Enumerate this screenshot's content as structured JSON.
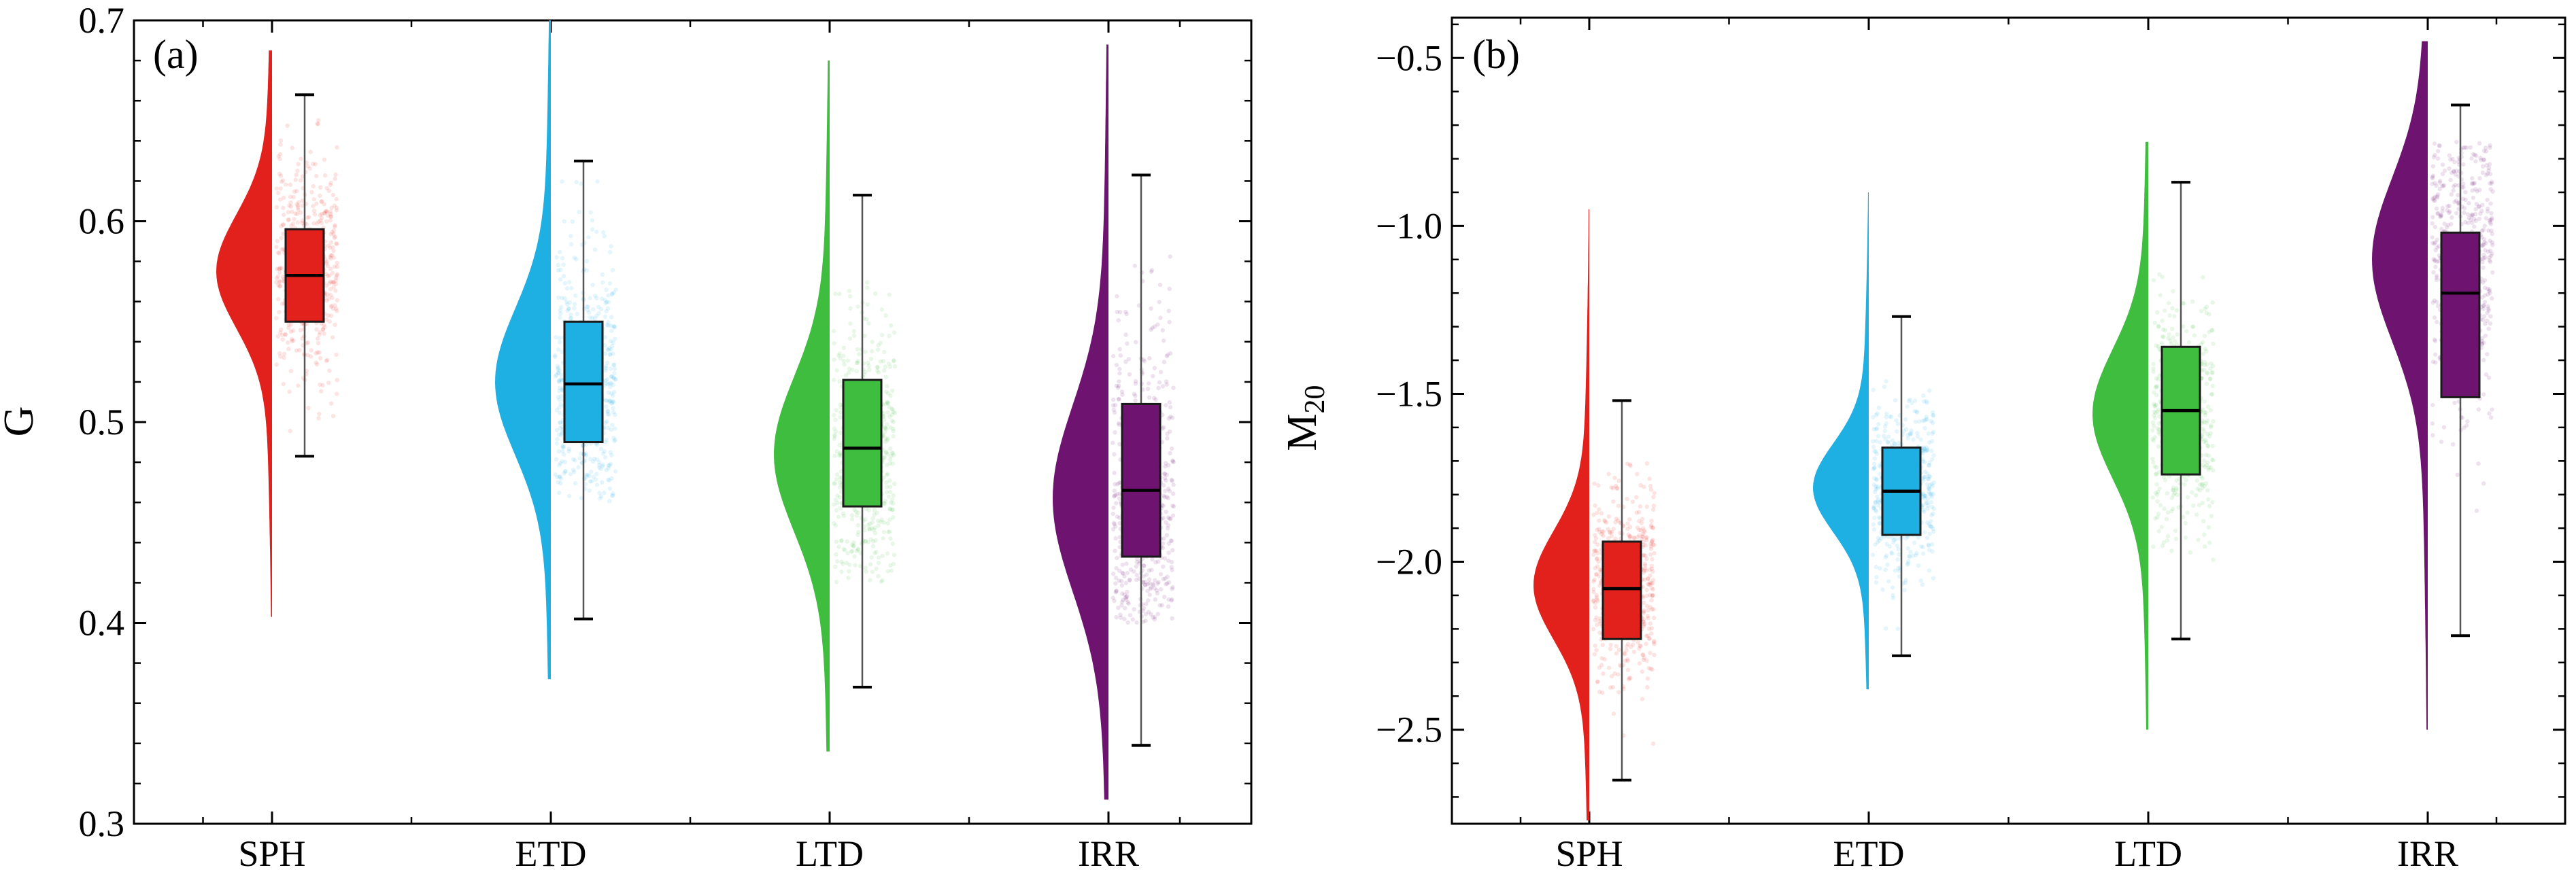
{
  "chart_data": [
    {
      "type": "raincloud",
      "panel_label": "(a)",
      "ylabel": "G",
      "ylabel_sub": "",
      "ylim": [
        0.3,
        0.7
      ],
      "yticks": [
        0.3,
        0.4,
        0.5,
        0.6,
        0.7
      ],
      "ytick_labels": [
        "0.3",
        "0.4",
        "0.5",
        "0.6",
        "0.7"
      ],
      "categories": [
        "SPH",
        "ETD",
        "LTD",
        "IRR"
      ],
      "colors": [
        "#e3211c",
        "#1fb0e3",
        "#3ebd3e",
        "#6e1470"
      ],
      "groups": [
        {
          "name": "SPH",
          "whisker_low": 0.483,
          "q1": 0.55,
          "median": 0.573,
          "q3": 0.596,
          "whisker_high": 0.663,
          "kde_min": 0.403,
          "kde_max": 0.685,
          "peak": 0.575,
          "spread": 0.028,
          "strip_low": 0.46,
          "strip_high": 0.665
        },
        {
          "name": "ETD",
          "whisker_low": 0.402,
          "q1": 0.49,
          "median": 0.519,
          "q3": 0.55,
          "whisker_high": 0.63,
          "kde_min": 0.372,
          "kde_max": 0.7,
          "peak": 0.52,
          "spread": 0.036,
          "strip_low": 0.46,
          "strip_high": 0.62
        },
        {
          "name": "LTD",
          "whisker_low": 0.368,
          "q1": 0.458,
          "median": 0.487,
          "q3": 0.521,
          "whisker_high": 0.613,
          "kde_min": 0.336,
          "kde_max": 0.68,
          "peak": 0.484,
          "spread": 0.038,
          "strip_low": 0.42,
          "strip_high": 0.6
        },
        {
          "name": "IRR",
          "whisker_low": 0.339,
          "q1": 0.433,
          "median": 0.466,
          "q3": 0.509,
          "whisker_high": 0.623,
          "kde_min": 0.312,
          "kde_max": 0.688,
          "peak": 0.462,
          "spread": 0.046,
          "strip_low": 0.4,
          "strip_high": 0.6
        }
      ]
    },
    {
      "type": "raincloud",
      "panel_label": "(b)",
      "ylabel": "M",
      "ylabel_sub": "20",
      "ylim": [
        -2.78,
        -0.38
      ],
      "yticks": [
        -2.5,
        -2.0,
        -1.5,
        -1.0,
        -0.5
      ],
      "ytick_labels": [
        "−2.5",
        "−2.0",
        "−1.5",
        "−1.0",
        "−0.5"
      ],
      "categories": [
        "SPH",
        "ETD",
        "LTD",
        "IRR"
      ],
      "colors": [
        "#e3211c",
        "#1fb0e3",
        "#3ebd3e",
        "#6e1470"
      ],
      "groups": [
        {
          "name": "SPH",
          "whisker_low": -2.65,
          "q1": -2.23,
          "median": -2.08,
          "q3": -1.94,
          "whisker_high": -1.52,
          "kde_min": -2.77,
          "kde_max": -0.95,
          "peak": -2.07,
          "spread": 0.16,
          "strip_low": -2.6,
          "strip_high": -1.7
        },
        {
          "name": "ETD",
          "whisker_low": -2.28,
          "q1": -1.92,
          "median": -1.79,
          "q3": -1.66,
          "whisker_high": -1.27,
          "kde_min": -2.38,
          "kde_max": -0.9,
          "peak": -1.78,
          "spread": 0.13,
          "strip_low": -2.2,
          "strip_high": -1.45
        },
        {
          "name": "LTD",
          "whisker_low": -2.23,
          "q1": -1.74,
          "median": -1.55,
          "q3": -1.36,
          "whisker_high": -0.87,
          "kde_min": -2.5,
          "kde_max": -0.75,
          "peak": -1.56,
          "spread": 0.19,
          "strip_low": -2.0,
          "strip_high": -1.1
        },
        {
          "name": "IRR",
          "whisker_low": -2.22,
          "q1": -1.51,
          "median": -1.2,
          "q3": -1.02,
          "whisker_high": -0.64,
          "kde_min": -2.5,
          "kde_max": -0.45,
          "peak": -1.1,
          "spread": 0.24,
          "strip_low": -2.1,
          "strip_high": -0.75
        }
      ]
    }
  ]
}
